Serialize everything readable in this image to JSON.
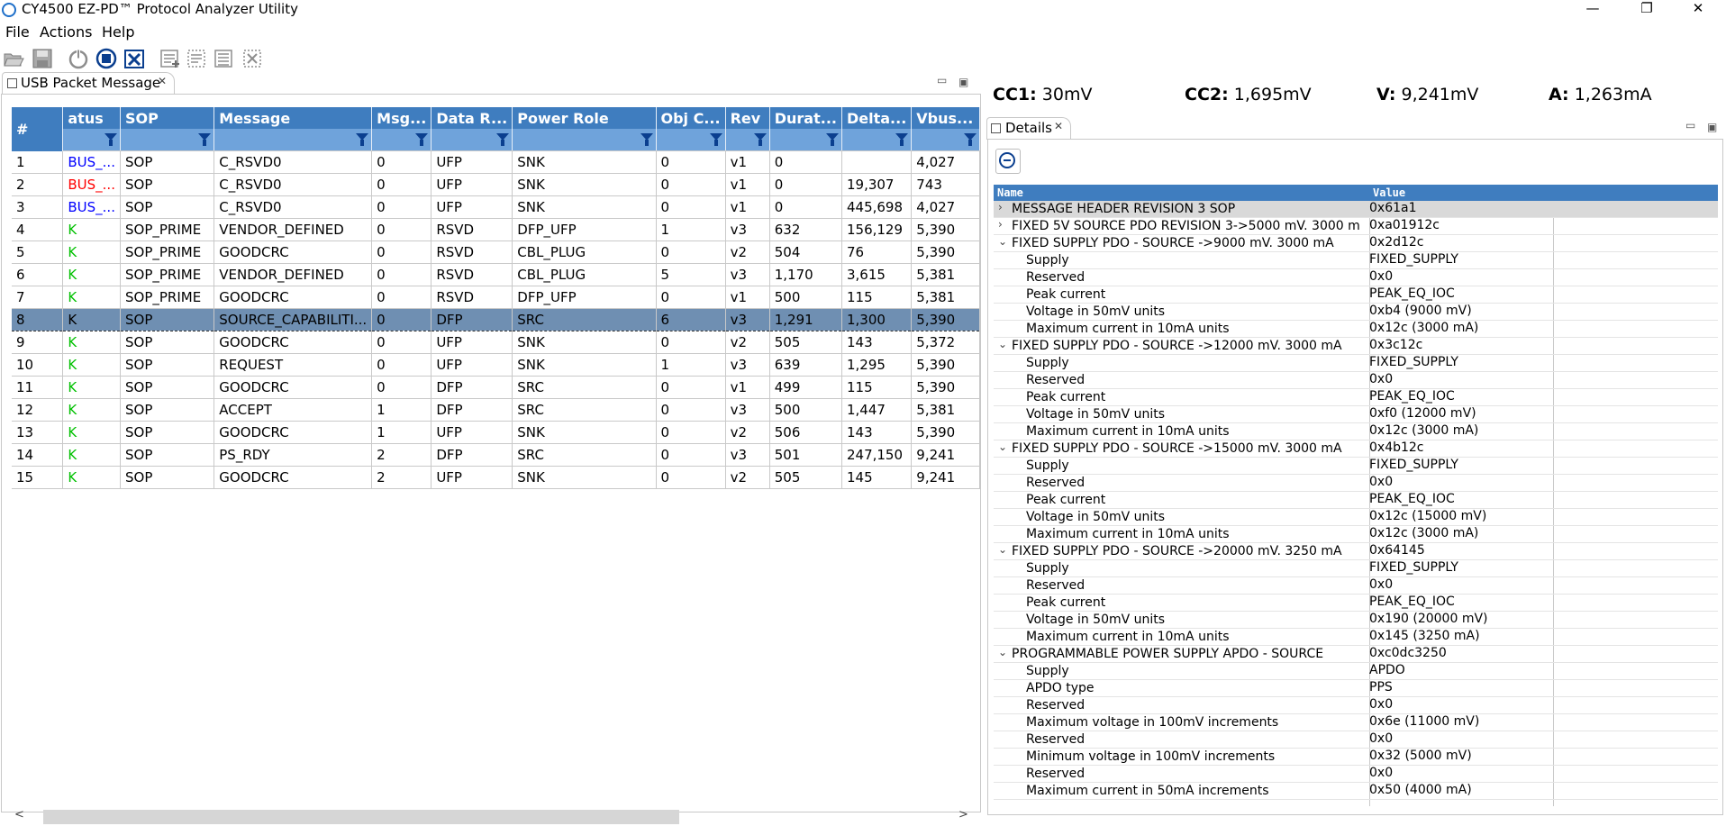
{
  "window": {
    "title": "CY4500 EZ-PD™ Protocol Analyzer Utility",
    "minimize": "—",
    "restore": "❐",
    "close": "✕"
  },
  "menu": {
    "file": "File",
    "actions": "Actions",
    "help": "Help"
  },
  "toolbar": {
    "icons": [
      "open-icon",
      "save-icon",
      "power-icon",
      "stop-icon",
      "clear-icon",
      "log-add-icon",
      "log-remove-icon",
      "log-list-icon",
      "log-clear-icon"
    ]
  },
  "packet_view": {
    "tab_label": "USB Packet Message",
    "columns": [
      "#",
      "atus",
      "SOP",
      "Message",
      "Msg...",
      "Data R...",
      "Power Role",
      "Obj C...",
      "Rev",
      "Durat...",
      "Delta...",
      "Vbus..."
    ],
    "rows": [
      {
        "num": "1",
        "status": "BUS_...",
        "status_color": "blue",
        "sop": "SOP",
        "message": "C_RSVD0",
        "msg": "0",
        "data_role": "UFP",
        "power_role": "SNK",
        "obj": "0",
        "rev": "v1",
        "dur": "0",
        "delta": "",
        "vbus": "4,027"
      },
      {
        "num": "2",
        "status": "BUS_...",
        "status_color": "red",
        "sop": "SOP",
        "message": "C_RSVD0",
        "msg": "0",
        "data_role": "UFP",
        "power_role": "SNK",
        "obj": "0",
        "rev": "v1",
        "dur": "0",
        "delta": "19,307",
        "vbus": "743"
      },
      {
        "num": "3",
        "status": "BUS_...",
        "status_color": "blue",
        "sop": "SOP",
        "message": "C_RSVD0",
        "msg": "0",
        "data_role": "UFP",
        "power_role": "SNK",
        "obj": "0",
        "rev": "v1",
        "dur": "0",
        "delta": "445,698",
        "vbus": "4,027"
      },
      {
        "num": "4",
        "status": "K",
        "status_color": "green",
        "sop": "SOP_PRIME",
        "message": "VENDOR_DEFINED",
        "msg": "0",
        "data_role": "RSVD",
        "power_role": "DFP_UFP",
        "obj": "1",
        "rev": "v3",
        "dur": "632",
        "delta": "156,129",
        "vbus": "5,390"
      },
      {
        "num": "5",
        "status": "K",
        "status_color": "green",
        "sop": "SOP_PRIME",
        "message": "GOODCRC",
        "msg": "0",
        "data_role": "RSVD",
        "power_role": "CBL_PLUG",
        "obj": "0",
        "rev": "v2",
        "dur": "504",
        "delta": "76",
        "vbus": "5,390"
      },
      {
        "num": "6",
        "status": "K",
        "status_color": "green",
        "sop": "SOP_PRIME",
        "message": "VENDOR_DEFINED",
        "msg": "0",
        "data_role": "RSVD",
        "power_role": "CBL_PLUG",
        "obj": "5",
        "rev": "v3",
        "dur": "1,170",
        "delta": "3,615",
        "vbus": "5,381"
      },
      {
        "num": "7",
        "status": "K",
        "status_color": "green",
        "sop": "SOP_PRIME",
        "message": "GOODCRC",
        "msg": "0",
        "data_role": "RSVD",
        "power_role": "DFP_UFP",
        "obj": "0",
        "rev": "v1",
        "dur": "500",
        "delta": "115",
        "vbus": "5,381"
      },
      {
        "num": "8",
        "status": "K",
        "status_color": "sel",
        "sop": "SOP",
        "message": "SOURCE_CAPABILITI...",
        "msg": "0",
        "data_role": "DFP",
        "power_role": "SRC",
        "obj": "6",
        "rev": "v3",
        "dur": "1,291",
        "delta": "1,300",
        "vbus": "5,390"
      },
      {
        "num": "9",
        "status": "K",
        "status_color": "green",
        "sop": "SOP",
        "message": "GOODCRC",
        "msg": "0",
        "data_role": "UFP",
        "power_role": "SNK",
        "obj": "0",
        "rev": "v2",
        "dur": "505",
        "delta": "143",
        "vbus": "5,372"
      },
      {
        "num": "10",
        "status": "K",
        "status_color": "green",
        "sop": "SOP",
        "message": "REQUEST",
        "msg": "0",
        "data_role": "UFP",
        "power_role": "SNK",
        "obj": "1",
        "rev": "v3",
        "dur": "639",
        "delta": "1,295",
        "vbus": "5,390"
      },
      {
        "num": "11",
        "status": "K",
        "status_color": "green",
        "sop": "SOP",
        "message": "GOODCRC",
        "msg": "0",
        "data_role": "DFP",
        "power_role": "SRC",
        "obj": "0",
        "rev": "v1",
        "dur": "499",
        "delta": "115",
        "vbus": "5,390"
      },
      {
        "num": "12",
        "status": "K",
        "status_color": "green",
        "sop": "SOP",
        "message": "ACCEPT",
        "msg": "1",
        "data_role": "DFP",
        "power_role": "SRC",
        "obj": "0",
        "rev": "v3",
        "dur": "500",
        "delta": "1,447",
        "vbus": "5,381"
      },
      {
        "num": "13",
        "status": "K",
        "status_color": "green",
        "sop": "SOP",
        "message": "GOODCRC",
        "msg": "1",
        "data_role": "UFP",
        "power_role": "SNK",
        "obj": "0",
        "rev": "v2",
        "dur": "506",
        "delta": "143",
        "vbus": "5,390"
      },
      {
        "num": "14",
        "status": "K",
        "status_color": "green",
        "sop": "SOP",
        "message": "PS_RDY",
        "msg": "2",
        "data_role": "DFP",
        "power_role": "SRC",
        "obj": "0",
        "rev": "v3",
        "dur": "501",
        "delta": "247,150",
        "vbus": "9,241"
      },
      {
        "num": "15",
        "status": "K",
        "status_color": "green",
        "sop": "SOP",
        "message": "GOODCRC",
        "msg": "2",
        "data_role": "UFP",
        "power_role": "SNK",
        "obj": "0",
        "rev": "v2",
        "dur": "505",
        "delta": "145",
        "vbus": "9,241"
      }
    ],
    "selected_row": "8"
  },
  "readouts": [
    {
      "label": "CC1:",
      "value": "30mV"
    },
    {
      "label": "CC2:",
      "value": "1,695mV"
    },
    {
      "label": "V:",
      "value": "9,241mV"
    },
    {
      "label": "A:",
      "value": "1,263mA"
    }
  ],
  "details": {
    "tab_label": "Details",
    "col_name": "Name",
    "col_value": "Value",
    "rows": [
      {
        "level": 0,
        "twisty": ">",
        "name": "MESSAGE HEADER REVISION 3 SOP",
        "value": "0x61a1"
      },
      {
        "level": 0,
        "twisty": ">",
        "name": "FIXED 5V SOURCE PDO REVISION 3->5000 mV. 3000 m",
        "value": "0xa01912c"
      },
      {
        "level": 0,
        "twisty": "v",
        "name": "FIXED SUPPLY PDO - SOURCE ->9000 mV. 3000 mA",
        "value": "0x2d12c"
      },
      {
        "level": 1,
        "name": "Supply",
        "value": "FIXED_SUPPLY"
      },
      {
        "level": 1,
        "name": "Reserved",
        "value": "0x0"
      },
      {
        "level": 1,
        "name": "Peak current",
        "value": "PEAK_EQ_IOC"
      },
      {
        "level": 1,
        "name": "Voltage in 50mV units",
        "value": "0xb4 (9000 mV)"
      },
      {
        "level": 1,
        "name": "Maximum current in 10mA units",
        "value": "0x12c (3000 mA)"
      },
      {
        "level": 0,
        "twisty": "v",
        "name": "FIXED SUPPLY PDO - SOURCE ->12000 mV. 3000 mA",
        "value": "0x3c12c"
      },
      {
        "level": 1,
        "name": "Supply",
        "value": "FIXED_SUPPLY"
      },
      {
        "level": 1,
        "name": "Reserved",
        "value": "0x0"
      },
      {
        "level": 1,
        "name": "Peak current",
        "value": "PEAK_EQ_IOC"
      },
      {
        "level": 1,
        "name": "Voltage in 50mV units",
        "value": "0xf0 (12000 mV)"
      },
      {
        "level": 1,
        "name": "Maximum current in 10mA units",
        "value": "0x12c (3000 mA)"
      },
      {
        "level": 0,
        "twisty": "v",
        "name": "FIXED SUPPLY PDO - SOURCE ->15000 mV. 3000 mA",
        "value": "0x4b12c"
      },
      {
        "level": 1,
        "name": "Supply",
        "value": "FIXED_SUPPLY"
      },
      {
        "level": 1,
        "name": "Reserved",
        "value": "0x0"
      },
      {
        "level": 1,
        "name": "Peak current",
        "value": "PEAK_EQ_IOC"
      },
      {
        "level": 1,
        "name": "Voltage in 50mV units",
        "value": "0x12c (15000 mV)"
      },
      {
        "level": 1,
        "name": "Maximum current in 10mA units",
        "value": "0x12c (3000 mA)"
      },
      {
        "level": 0,
        "twisty": "v",
        "name": "FIXED SUPPLY PDO - SOURCE ->20000 mV. 3250 mA",
        "value": "0x64145"
      },
      {
        "level": 1,
        "name": "Supply",
        "value": "FIXED_SUPPLY"
      },
      {
        "level": 1,
        "name": "Reserved",
        "value": "0x0"
      },
      {
        "level": 1,
        "name": "Peak current",
        "value": "PEAK_EQ_IOC"
      },
      {
        "level": 1,
        "name": "Voltage in 50mV units",
        "value": "0x190 (20000 mV)"
      },
      {
        "level": 1,
        "name": "Maximum current in 10mA units",
        "value": "0x145 (3250 mA)"
      },
      {
        "level": 0,
        "twisty": "v",
        "name": "PROGRAMMABLE POWER SUPPLY APDO - SOURCE",
        "value": "0xc0dc3250"
      },
      {
        "level": 1,
        "name": "Supply",
        "value": "APDO"
      },
      {
        "level": 1,
        "name": "APDO type",
        "value": "PPS"
      },
      {
        "level": 1,
        "name": "Reserved",
        "value": "0x0"
      },
      {
        "level": 1,
        "name": "Maximum voltage in 100mV increments",
        "value": "0x6e (11000 mV)"
      },
      {
        "level": 1,
        "name": "Reserved",
        "value": "0x0"
      },
      {
        "level": 1,
        "name": "Minimum voltage in 100mV increments",
        "value": "0x32 (5000 mV)"
      },
      {
        "level": 1,
        "name": "Reserved",
        "value": "0x0"
      },
      {
        "level": 1,
        "name": "Maximum current in 50mA increments",
        "value": "0x50 (4000 mA)"
      }
    ]
  },
  "colors": {
    "header_blue": "#3f7dbf",
    "filter_blue": "#6fa3db",
    "selected_row": "#6f8fb2",
    "status_blue": "#0000ff",
    "status_red": "#ff0000",
    "status_green": "#00c000"
  }
}
